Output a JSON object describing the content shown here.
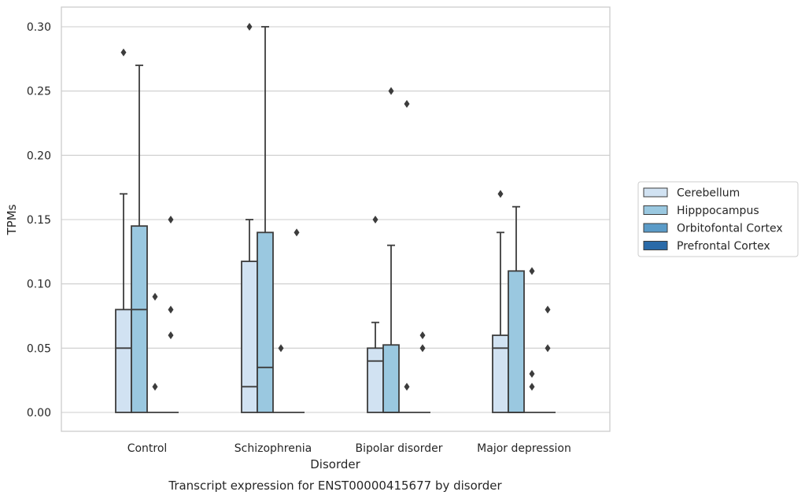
{
  "chart_data": {
    "type": "box",
    "caption": "Transcript expression for ENST00000415677 by disorder",
    "xlabel": "Disorder",
    "ylabel": "TPMs",
    "ylim": [
      -0.014,
      0.315
    ],
    "yticks": [
      0.0,
      0.05,
      0.1,
      0.15,
      0.2,
      0.25,
      0.3
    ],
    "ytick_labels": [
      "0.00",
      "0.05",
      "0.10",
      "0.15",
      "0.20",
      "0.25",
      "0.30"
    ],
    "grid": "horizontal",
    "legend_position": "center-right, outside plot",
    "categories": [
      "Control",
      "Schizophrenia",
      "Bipolar disorder",
      "Major depression"
    ],
    "series": [
      {
        "name": "Cerebellum",
        "color": "#d1e2f2",
        "boxes": [
          {
            "q1": 0.0,
            "median": 0.05,
            "q3": 0.08,
            "whisker_low": 0.0,
            "whisker_high": 0.17,
            "outliers": [
              0.28
            ]
          },
          {
            "q1": 0.0,
            "median": 0.02,
            "q3": 0.1175,
            "whisker_low": 0.0,
            "whisker_high": 0.15,
            "outliers": [
              0.3
            ]
          },
          {
            "q1": 0.0,
            "median": 0.04,
            "q3": 0.05,
            "whisker_low": 0.0,
            "whisker_high": 0.07,
            "outliers": [
              0.15
            ]
          },
          {
            "q1": 0.0,
            "median": 0.05,
            "q3": 0.06,
            "whisker_low": 0.0,
            "whisker_high": 0.14,
            "outliers": [
              0.17
            ]
          }
        ]
      },
      {
        "name": "Hipppocampus",
        "color": "#9ac8e0",
        "boxes": [
          {
            "q1": 0.0,
            "median": 0.08,
            "q3": 0.145,
            "whisker_low": 0.0,
            "whisker_high": 0.27,
            "outliers": []
          },
          {
            "q1": 0.0,
            "median": 0.035,
            "q3": 0.14,
            "whisker_low": 0.0,
            "whisker_high": 0.3,
            "outliers": []
          },
          {
            "q1": 0.0,
            "median": 0.0,
            "q3": 0.0525,
            "whisker_low": 0.0,
            "whisker_high": 0.13,
            "outliers": [
              0.25
            ]
          },
          {
            "q1": 0.0,
            "median": 0.0,
            "q3": 0.11,
            "whisker_low": 0.0,
            "whisker_high": 0.16,
            "outliers": []
          }
        ]
      },
      {
        "name": "Orbitofontal Cortex",
        "color": "#5a9bc8",
        "boxes": [
          {
            "q1": 0.0,
            "median": 0.0,
            "q3": 0.0,
            "whisker_low": 0.0,
            "whisker_high": 0.0,
            "outliers": [
              0.02,
              0.09
            ]
          },
          {
            "q1": 0.0,
            "median": 0.0,
            "q3": 0.0,
            "whisker_low": 0.0,
            "whisker_high": 0.0,
            "outliers": [
              0.05
            ]
          },
          {
            "q1": 0.0,
            "median": 0.0,
            "q3": 0.0,
            "whisker_low": 0.0,
            "whisker_high": 0.0,
            "outliers": [
              0.02,
              0.24
            ]
          },
          {
            "q1": 0.0,
            "median": 0.0,
            "q3": 0.0,
            "whisker_low": 0.0,
            "whisker_high": 0.0,
            "outliers": [
              0.02,
              0.03,
              0.11
            ]
          }
        ]
      },
      {
        "name": "Prefrontal Cortex",
        "color": "#2a6aa8",
        "boxes": [
          {
            "q1": 0.0,
            "median": 0.0,
            "q3": 0.0,
            "whisker_low": 0.0,
            "whisker_high": 0.0,
            "outliers": [
              0.06,
              0.08,
              0.15
            ]
          },
          {
            "q1": 0.0,
            "median": 0.0,
            "q3": 0.0,
            "whisker_low": 0.0,
            "whisker_high": 0.0,
            "outliers": [
              0.14
            ]
          },
          {
            "q1": 0.0,
            "median": 0.0,
            "q3": 0.0,
            "whisker_low": 0.0,
            "whisker_high": 0.0,
            "outliers": [
              0.05,
              0.06
            ]
          },
          {
            "q1": 0.0,
            "median": 0.0,
            "q3": 0.0,
            "whisker_low": 0.0,
            "whisker_high": 0.0,
            "outliers": [
              0.05,
              0.08
            ]
          }
        ]
      }
    ]
  }
}
